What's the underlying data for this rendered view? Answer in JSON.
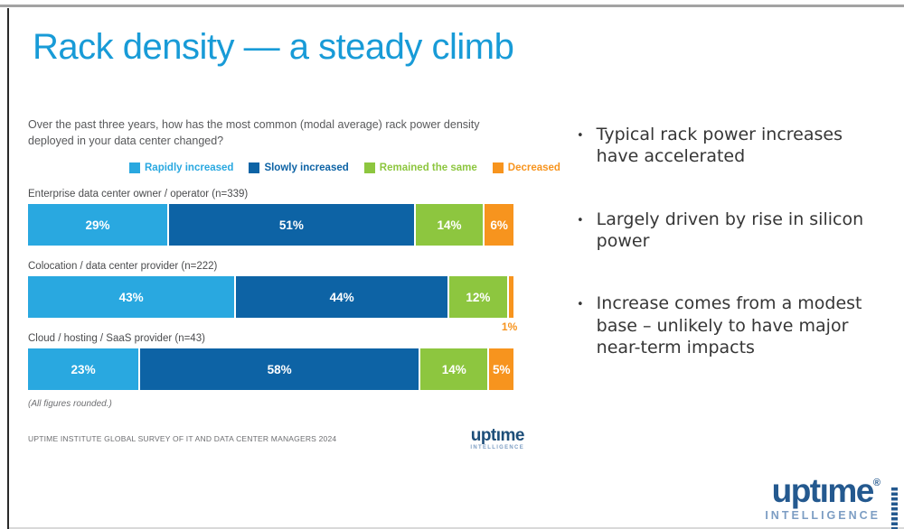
{
  "title": "Rack density — a steady climb",
  "chart": {
    "question": "Over the past three years, how has the most common (modal average) rack power density deployed in your data center changed?",
    "footnote": "(All figures rounded.)",
    "source": "UPTIME INSTITUTE GLOBAL SURVEY OF IT AND DATA CENTER MANAGERS 2024"
  },
  "bullets": [
    "Typical rack power increases have accelerated",
    "Largely driven by rise in silicon power",
    "Increase comes from a modest base – unlikely to have major near-term impacts"
  ],
  "logos": {
    "small": {
      "word": "uptıme",
      "sub": "INTELLIGENCE"
    },
    "brand": {
      "word": "uptıme",
      "registered": "®",
      "sub": "INTELLIGENCE"
    }
  },
  "colors": {
    "title": "#189bd7",
    "rapidly_increased": "#29a8e0",
    "slowly_increased": "#0d63a5",
    "remained_the_same": "#8dc63f",
    "decreased": "#f7941e",
    "logo_navy": "#24598f",
    "logo_light_blue": "#7c9dc3"
  },
  "chart_data": {
    "type": "bar",
    "stacked": true,
    "orientation": "horizontal",
    "unit": "%",
    "xlim": [
      0,
      100
    ],
    "legend_position": "top",
    "categories": [
      "Enterprise data center owner / operator (n=339)",
      "Colocation / data center provider (n=222)",
      "Cloud / hosting / SaaS provider (n=43)"
    ],
    "series": [
      {
        "name": "Rapidly increased",
        "color": "#29a8e0",
        "values": [
          29,
          43,
          23
        ]
      },
      {
        "name": "Slowly increased",
        "color": "#0d63a5",
        "values": [
          51,
          44,
          58
        ]
      },
      {
        "name": "Remained the same",
        "color": "#8dc63f",
        "values": [
          14,
          12,
          14
        ]
      },
      {
        "name": "Decreased",
        "color": "#f7941e",
        "values": [
          6,
          1,
          5
        ]
      }
    ]
  }
}
